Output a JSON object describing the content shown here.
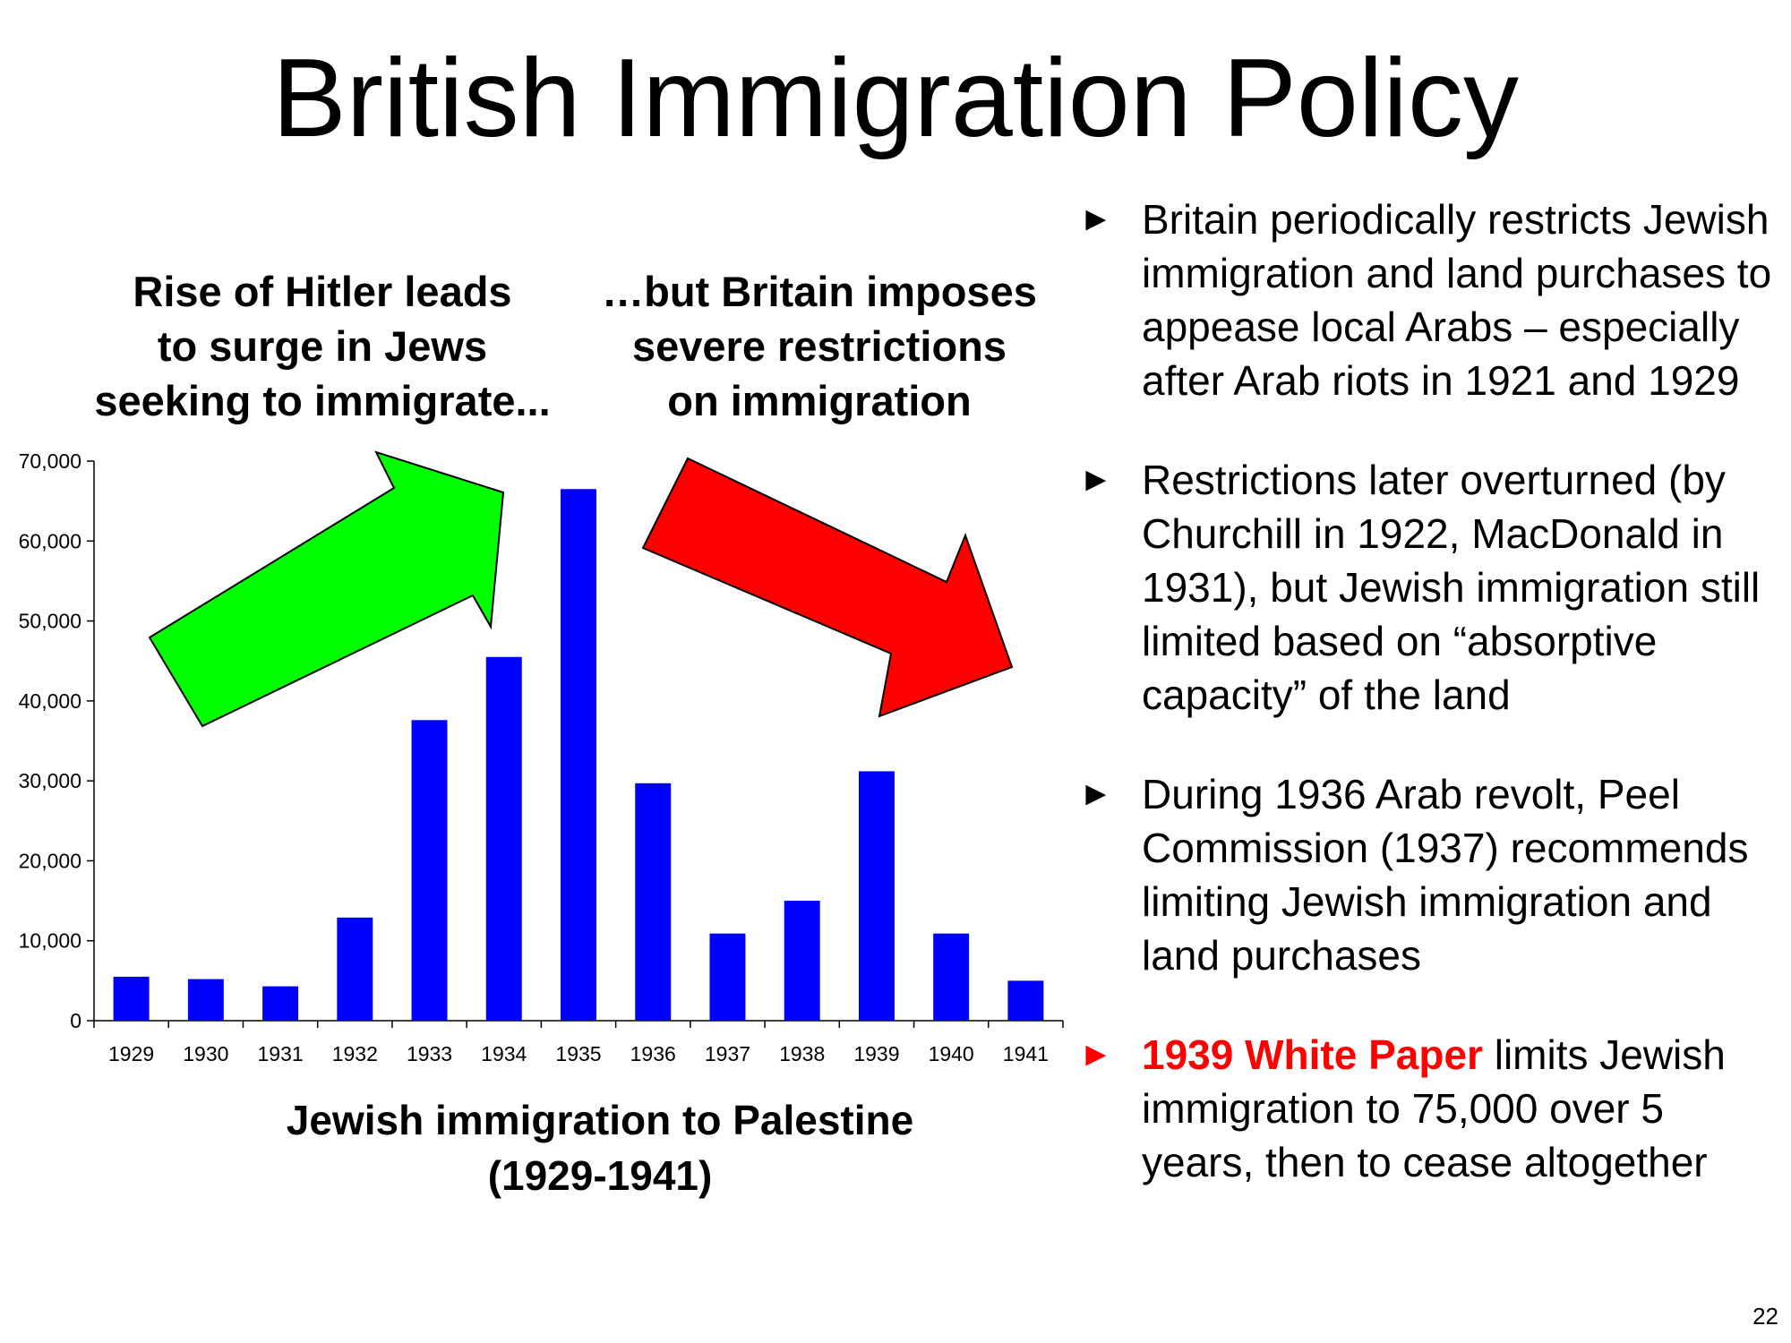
{
  "slide": {
    "title": "British Immigration Policy",
    "page_number": "22"
  },
  "callouts": {
    "left": "Rise of Hitler leads\nto surge in Jews\nseeking to immigrate...",
    "right": "…but Britain imposes\nsevere restrictions\non immigration"
  },
  "arrows": {
    "up": {
      "color": "#00ff00",
      "direction": "up-right"
    },
    "down": {
      "color": "#ff0000",
      "direction": "down-right"
    }
  },
  "chart_caption": "Jewish immigration to Palestine\n(1929-1941)",
  "chart_data": {
    "type": "bar",
    "title": "Jewish immigration to Palestine (1929-1941)",
    "categories": [
      "1929",
      "1930",
      "1931",
      "1932",
      "1933",
      "1934",
      "1935",
      "1936",
      "1937",
      "1938",
      "1939",
      "1940",
      "1941"
    ],
    "values": [
      5500,
      5200,
      4300,
      12900,
      37600,
      45500,
      66500,
      29700,
      10900,
      15000,
      31200,
      10900,
      5000
    ],
    "ylim": [
      0,
      70000
    ],
    "yticks": [
      0,
      10000,
      20000,
      30000,
      40000,
      50000,
      60000,
      70000
    ],
    "ytick_labels": [
      "0",
      "10,000",
      "20,000",
      "30,000",
      "40,000",
      "50,000",
      "60,000",
      "70,000"
    ],
    "bar_color": "#0000ff",
    "grid": false,
    "legend": "none"
  },
  "bullets": [
    {
      "marker": "►",
      "marker_color": "#000000",
      "highlight": "",
      "text": "Britain periodically restricts Jewish immigration and land purchases to appease local Arabs – especially after Arab riots in 1921 and 1929"
    },
    {
      "marker": "►",
      "marker_color": "#000000",
      "highlight": "",
      "text": "Restrictions later overturned (by Churchill in 1922, MacDonald in 1931), but Jewish immigration still limited based on “absorptive capacity” of the land"
    },
    {
      "marker": "►",
      "marker_color": "#000000",
      "highlight": "",
      "text": "During 1936 Arab revolt, Peel Commission (1937) recommends limiting Jewish immigration and land purchases"
    },
    {
      "marker": "►",
      "marker_color": "#ff0000",
      "highlight": "1939 White Paper",
      "text": " limits Jewish immigration to 75,000 over 5 years, then to cease altogether"
    }
  ]
}
